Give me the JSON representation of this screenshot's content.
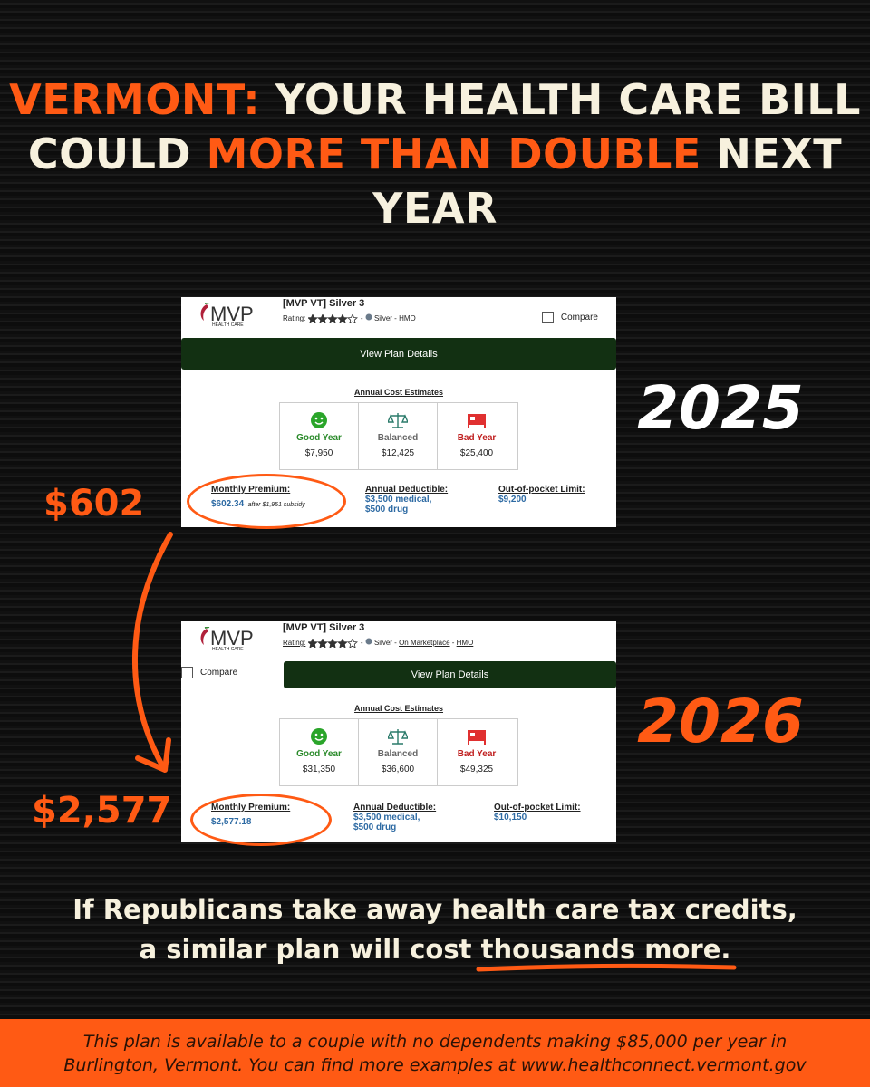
{
  "title": {
    "parts": [
      "VERMONT:",
      "YOUR HEALTH CARE BILL COULD",
      "MORE THAN DOUBLE",
      "NEXT YEAR"
    ]
  },
  "cards": [
    {
      "year": "2025",
      "logo": "MVP",
      "logo_sub": "HEALTH CARE",
      "plan": "[MVP VT] Silver 3",
      "rating_label": "Rating:",
      "tags": [
        "Silver",
        "HMO"
      ],
      "compare": "Compare",
      "view": "View Plan Details",
      "estimates_title": "Annual Cost Estimates",
      "estimates": [
        {
          "label": "Good Year",
          "value": "$7,950"
        },
        {
          "label": "Balanced",
          "value": "$12,425"
        },
        {
          "label": "Bad Year",
          "value": "$25,400"
        }
      ],
      "premium_label": "Monthly Premium:",
      "premium": "$602.34",
      "premium_note": "after $1,951 subsidy",
      "deductible_label": "Annual Deductible:",
      "deductible": [
        "$3,500 medical,",
        "$500 drug"
      ],
      "oop_label": "Out-of-pocket Limit:",
      "oop": "$9,200",
      "arrow_label": "$602"
    },
    {
      "year": "2026",
      "logo": "MVP",
      "logo_sub": "HEALTH CARE",
      "plan": "[MVP VT] Silver 3",
      "rating_label": "Rating:",
      "tags": [
        "Silver",
        "On Marketplace",
        "HMO"
      ],
      "compare": "Compare",
      "view": "View Plan Details",
      "estimates_title": "Annual Cost Estimates",
      "estimates": [
        {
          "label": "Good Year",
          "value": "$31,350"
        },
        {
          "label": "Balanced",
          "value": "$36,600"
        },
        {
          "label": "Bad Year",
          "value": "$49,325"
        }
      ],
      "premium_label": "Monthly Premium:",
      "premium": "$2,577.18",
      "deductible_label": "Annual Deductible:",
      "deductible": [
        "$3,500 medical,",
        "$500 drug"
      ],
      "oop_label": "Out-of-pocket Limit:",
      "oop": "$10,150",
      "arrow_label": "$2,577"
    }
  ],
  "message": {
    "text": "If Republicans take away health care tax credits, a similar plan will cost",
    "emphasis": "thousands more."
  },
  "footer": {
    "lines": [
      "This plan is available to a couple with no dependents making $85,000 per year in",
      "Burlington, Vermont. You can find more examples at www.healthconnect.vermont.gov"
    ]
  }
}
